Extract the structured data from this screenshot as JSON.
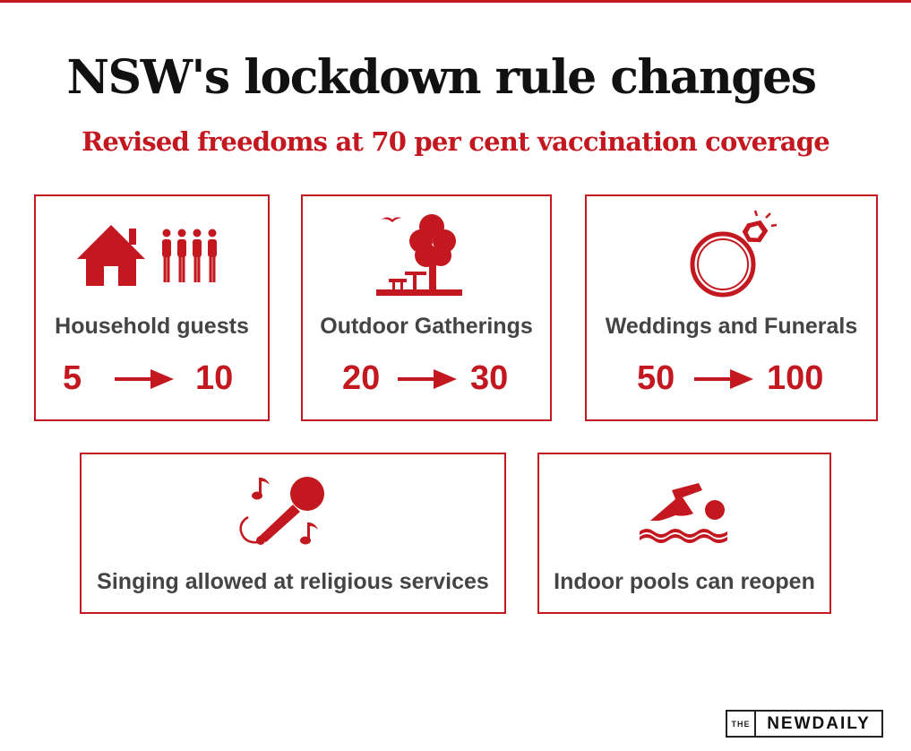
{
  "header": {
    "title": "NSW's  lockdown rule changes",
    "subtitle": "Revised freedoms at 70 per cent vaccination coverage"
  },
  "colors": {
    "accent": "#c3181f",
    "label_text": "#444444",
    "title_text": "#111111"
  },
  "cards": [
    {
      "label": "Household guests",
      "from": "5",
      "to": "10",
      "icon": "house-and-people-icon"
    },
    {
      "label": "Outdoor Gatherings",
      "from": "20",
      "to": "30",
      "icon": "park-tree-icon"
    },
    {
      "label": "Weddings and Funerals",
      "from": "50",
      "to": "100",
      "icon": "diamond-ring-icon"
    },
    {
      "label": "Singing allowed at religious services",
      "icon": "microphone-icon"
    },
    {
      "label": "Indoor pools can reopen",
      "icon": "swimmer-icon"
    }
  ],
  "logo": {
    "prefix": "THE",
    "brand": "NEWDAILY"
  }
}
